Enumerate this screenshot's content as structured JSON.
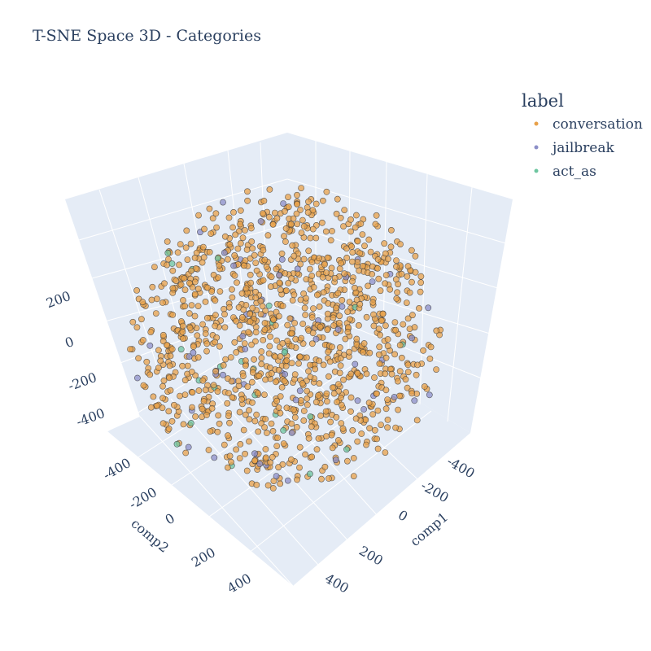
{
  "chart_data": {
    "type": "scatter3d",
    "title": "T-SNE Space 3D - Categories",
    "legend": {
      "title": "label",
      "position": "top-right",
      "entries": [
        {
          "name": "conversation",
          "color": "#e8a14a"
        },
        {
          "name": "jailbreak",
          "color": "#8c8fc8"
        },
        {
          "name": "act_as",
          "color": "#6ec6a0"
        }
      ]
    },
    "axes": {
      "x": {
        "title": "comp1",
        "ticks": [
          "-400",
          "-200",
          "0",
          "200",
          "400"
        ],
        "range": [
          -450,
          450
        ]
      },
      "y": {
        "title": "comp2",
        "ticks": [
          "-400",
          "-200",
          "0",
          "200",
          "400"
        ],
        "range": [
          -450,
          450
        ]
      },
      "z": {
        "title": "",
        "ticks": [
          "-400",
          "-200",
          "0",
          "200"
        ],
        "range": [
          -450,
          450
        ]
      }
    },
    "grid": true,
    "background": "#e5ecf6",
    "marker_edge_color": "#3a3a3a",
    "series": [
      {
        "name": "conversation",
        "color": "#e8a14a",
        "approx_points": 1150
      },
      {
        "name": "jailbreak",
        "color": "#8c8fc8",
        "approx_points": 60
      },
      {
        "name": "act_as",
        "color": "#6ec6a0",
        "approx_points": 25
      }
    ],
    "point_cloud": "roughly spherical distribution centered at origin, radius ~400"
  }
}
